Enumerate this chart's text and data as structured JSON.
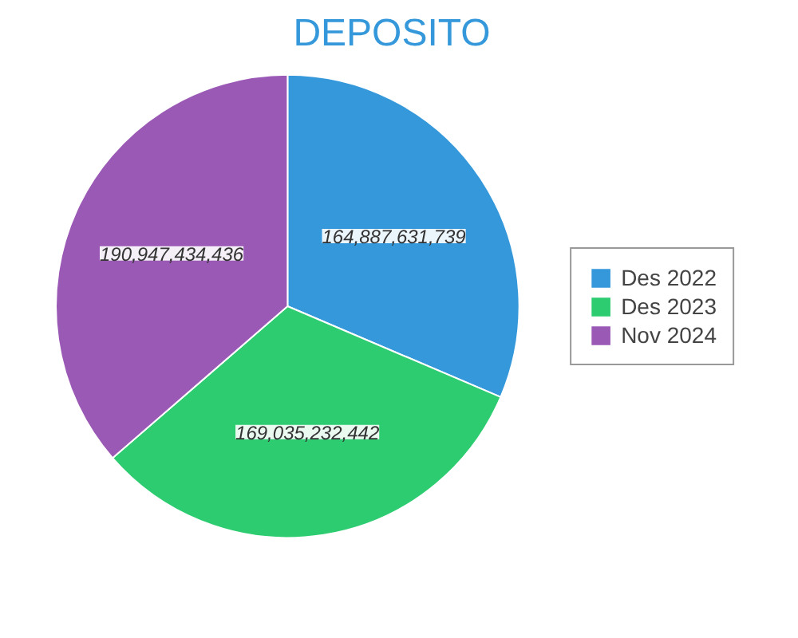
{
  "chart_data": {
    "type": "pie",
    "title": "DEPOSITO",
    "categories": [
      "Des 2022",
      "Des 2023",
      "Nov 2024"
    ],
    "values": [
      164887631739,
      169035232442,
      190947434436
    ],
    "colors": [
      "#3498db",
      "#2ecc71",
      "#9b59b6"
    ],
    "value_labels": [
      "164,887,631,739",
      "169,035,232,442",
      "190,947,434,436"
    ],
    "legend": "right"
  }
}
